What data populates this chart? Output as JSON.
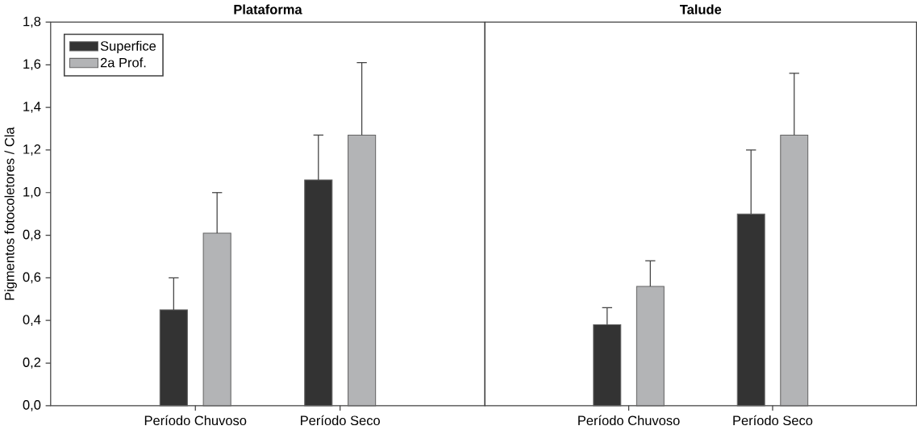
{
  "chart_data": [
    {
      "type": "bar",
      "title": "Plataforma",
      "ylabel": "Pigmentos fotocoletores / Cla",
      "categories": [
        "Período Chuvoso",
        "Período Seco"
      ],
      "series": [
        {
          "name": "Superfice",
          "color": "#333333",
          "values": [
            0.45,
            1.06
          ],
          "errors": [
            [
              0.45,
              0.6
            ],
            [
              1.06,
              1.27
            ]
          ]
        },
        {
          "name": "2a Prof.",
          "color": "#b3b4b6",
          "values": [
            0.81,
            1.27
          ],
          "errors": [
            [
              0.81,
              1.0
            ],
            [
              1.27,
              1.61
            ]
          ]
        }
      ],
      "ylim": [
        0,
        1.8
      ],
      "yticks": [
        {
          "value": 0,
          "label": "0,0"
        },
        {
          "value": 0.2,
          "label": "0,2"
        },
        {
          "value": 0.4,
          "label": "0,4"
        },
        {
          "value": 0.6,
          "label": "0,6"
        },
        {
          "value": 0.8,
          "label": "0,8"
        },
        {
          "value": 1.0,
          "label": "1,0"
        },
        {
          "value": 1.2,
          "label": "1,2"
        },
        {
          "value": 1.4,
          "label": "1,4"
        },
        {
          "value": 1.6,
          "label": "1,6"
        },
        {
          "value": 1.8,
          "label": "1,8"
        }
      ],
      "legend": "top left"
    },
    {
      "type": "bar",
      "title": "Talude",
      "categories": [
        "Período Chuvoso",
        "Período Seco"
      ],
      "series": [
        {
          "color": "#333333",
          "values": [
            0.38,
            0.9
          ],
          "errors": [
            [
              0.38,
              0.46
            ],
            [
              0.9,
              1.2
            ]
          ]
        },
        {
          "color": "#b3b4b6",
          "values": [
            0.56,
            1.27
          ],
          "errors": [
            [
              0.56,
              0.68
            ],
            [
              1.27,
              1.56
            ]
          ]
        }
      ],
      "ylim": [
        0,
        1.8
      ],
      "tick_labels": "x"
    }
  ]
}
